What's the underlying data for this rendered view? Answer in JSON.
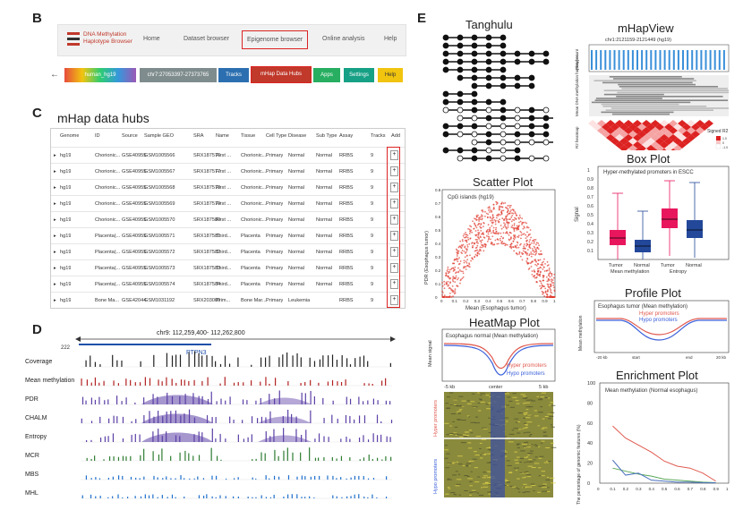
{
  "panels": {
    "b": "B",
    "c": "C",
    "d": "D",
    "e": "E"
  },
  "nav": {
    "logo_line1": "DNA Methylation",
    "logo_line2": "Haplotype Browser",
    "home": "Home",
    "dataset": "Dataset browser",
    "epigenome": "Epigenome browser",
    "online": "Online analysis",
    "help": "Help"
  },
  "toolbar": {
    "back": "←",
    "genome": "human_hg19",
    "location": "chr7:27053397-27373765",
    "tracks": "Tracks",
    "hubs": "mHap Data Hubs",
    "apps": "Apps",
    "settings": "Settings",
    "help": "Help"
  },
  "hubs": {
    "title": "mHap data hubs",
    "columns": [
      "Genome",
      "ID",
      "Source",
      "Sample GEO",
      "SRA",
      "Name",
      "Tissue",
      "Cell Type",
      "Disease",
      "Sub Type",
      "Assay",
      "Tracks",
      "Add"
    ],
    "rows": [
      [
        "hg19",
        "Chorionic...",
        "GSE40955",
        "GSM1005566",
        "SRX187576",
        "First ...",
        "Chorionic...",
        "Primary",
        "Normal",
        "Normal",
        "RRBS",
        "9"
      ],
      [
        "hg19",
        "Chorionic...",
        "GSE40955",
        "GSM1005567",
        "SRX187577",
        "First ...",
        "Chorionic...",
        "Primary",
        "Normal",
        "Normal",
        "RRBS",
        "9"
      ],
      [
        "hg19",
        "Chorionic...",
        "GSE40955",
        "GSM1005568",
        "SRX187578",
        "First ...",
        "Chorionic...",
        "Primary",
        "Normal",
        "Normal",
        "RRBS",
        "9"
      ],
      [
        "hg19",
        "Chorionic...",
        "GSE40955",
        "GSM1005569",
        "SRX187579",
        "First ...",
        "Chorionic...",
        "Primary",
        "Normal",
        "Normal",
        "RRBS",
        "9"
      ],
      [
        "hg19",
        "Chorionic...",
        "GSE40955",
        "GSM1005570",
        "SRX187580",
        "First ...",
        "Chorionic...",
        "Primary",
        "Normal",
        "Normal",
        "RRBS",
        "9"
      ],
      [
        "hg19",
        "Placenta(...",
        "GSE40955",
        "GSM1005571",
        "SRX187581",
        "Third...",
        "Placenta",
        "Primary",
        "Normal",
        "Normal",
        "RRBS",
        "9"
      ],
      [
        "hg19",
        "Placenta(...",
        "GSE40955",
        "GSM1005572",
        "SRX187582",
        "Third...",
        "Placenta",
        "Primary",
        "Normal",
        "Normal",
        "RRBS",
        "9"
      ],
      [
        "hg19",
        "Placenta(...",
        "GSE40955",
        "GSM1005573",
        "SRX187583",
        "Third...",
        "Placenta",
        "Primary",
        "Normal",
        "Normal",
        "RRBS",
        "9"
      ],
      [
        "hg19",
        "Placenta(...",
        "GSE40955",
        "GSM1005574",
        "SRX187584",
        "Third...",
        "Placenta",
        "Primary",
        "Normal",
        "Normal",
        "RRBS",
        "9"
      ],
      [
        "hg19",
        "Bone Ma...",
        "GSE42044",
        "GSM1031192",
        "SRX203009",
        "Prim...",
        "Bone Mar...",
        "Primary",
        "Leukemia",
        "",
        "RRBS",
        "9"
      ]
    ],
    "add_symbol": "+"
  },
  "genome_view": {
    "location": "chr9: 112,259,400- 112,262,800",
    "gene": "PTPN3",
    "coverage_max": "222",
    "tracks": [
      {
        "label": "Coverage",
        "color": "#222222"
      },
      {
        "label": "Mean methylation",
        "color": "#b22222"
      },
      {
        "label": "PDR",
        "color": "#5b3fa6"
      },
      {
        "label": "CHALM",
        "color": "#5b3fa6"
      },
      {
        "label": "Entropy",
        "color": "#5b3fa6"
      },
      {
        "label": "MCR",
        "color": "#2e7d32"
      },
      {
        "label": "MBS",
        "color": "#1e6fcc"
      },
      {
        "label": "MHL",
        "color": "#1e6fcc"
      }
    ]
  },
  "plots": {
    "tanghulu": "Tanghulu",
    "scatter": {
      "title": "Scatter Plot",
      "inner": "CpG islands (hg19)",
      "xlabel": "Mean (Esophagus tumor)",
      "ylabel": "PDR (Esophagus tumor)",
      "xticks": [
        "0",
        "0.1",
        "0.2",
        "0.3",
        "0.4",
        "0.5",
        "0.6",
        "0.7",
        "0.8",
        "0.9",
        "1"
      ],
      "yticks": [
        "0",
        "0.1",
        "0.2",
        "0.3",
        "0.4",
        "0.5",
        "0.6",
        "0.7",
        "0.8"
      ]
    },
    "heatmap": {
      "title": "HeatMap Plot",
      "inner": "Esophagus normal (Mean methylation)",
      "ylabel": "Mean signal",
      "hyper": "Hyper promoters",
      "hypo": "Hypo promoters",
      "xticks": [
        "-5 kb",
        "center",
        "5 kb"
      ],
      "side_hyper": "Hyper promoters",
      "side_hypo": "Hypo promoters"
    },
    "mhapview": {
      "title": "mHapView",
      "coords": "chr1:2121159-2121449 (hg19)",
      "left1": "Read count",
      "left2": "Mean DNA methylation haplotypes",
      "left3": "R2 heatmap",
      "legend": "Signed R2",
      "legend_ticks": [
        "1.0",
        "0",
        "-1.0"
      ]
    },
    "box": {
      "title": "Box Plot",
      "inner": "Hyper-methylated promoters in ESCC",
      "ylabel": "Signal",
      "yticks": [
        "0.1",
        "0.2",
        "0.3",
        "0.4",
        "0.5",
        "0.6",
        "0.7",
        "0.8",
        "0.9",
        "1"
      ],
      "groups": [
        "Tumor",
        "Normal",
        "Tumor",
        "Normal"
      ],
      "groups2": [
        "Mean methylation",
        "Entropy"
      ],
      "chart_data": {
        "type": "box",
        "categories": [
          "Tumor Mean",
          "Normal Mean",
          "Tumor Entropy",
          "Normal Entropy"
        ],
        "medians": [
          0.24,
          0.15,
          0.45,
          0.33
        ]
      }
    },
    "profile": {
      "title": "Profile Plot",
      "inner": "Esophagus tumor (Mean methylation)",
      "hyper": "Hyper promoters",
      "hypo": "Hypo promoters",
      "ylabel": "Mean methylation",
      "xticks": [
        "-20 kb",
        "start",
        "end",
        "20 kb"
      ]
    },
    "enrichment": {
      "title": "Enrichment Plot",
      "inner": "Mean methylation (Normal esophagus)",
      "ylabel": "The percentage of genomic features (%)",
      "yticks": [
        "0",
        "20",
        "40",
        "60",
        "80",
        "100"
      ],
      "xticks": [
        "0",
        "0.1",
        "0.2",
        "0.3",
        "0.4",
        "0.5",
        "0.6",
        "0.7",
        "0.8",
        "0.9",
        "1"
      ]
    }
  },
  "chart_data": [
    {
      "type": "line",
      "title": "Enrichment Plot",
      "x": [
        0.1,
        0.2,
        0.3,
        0.4,
        0.5,
        0.6,
        0.7,
        0.8,
        0.9
      ],
      "series": [
        {
          "name": "red",
          "color": "#e05a4f",
          "values": [
            57,
            45,
            38,
            31,
            22,
            17,
            15,
            10,
            2
          ]
        },
        {
          "name": "green",
          "color": "#5aa85a",
          "values": [
            15,
            12,
            9,
            7,
            4,
            3,
            2,
            1,
            0.5
          ]
        },
        {
          "name": "blue",
          "color": "#4a6fbf",
          "values": [
            23,
            8,
            10,
            3,
            2,
            1,
            1,
            0.5,
            0.3
          ]
        }
      ],
      "ylim": [
        0,
        100
      ],
      "xlim": [
        0,
        1
      ]
    }
  ]
}
